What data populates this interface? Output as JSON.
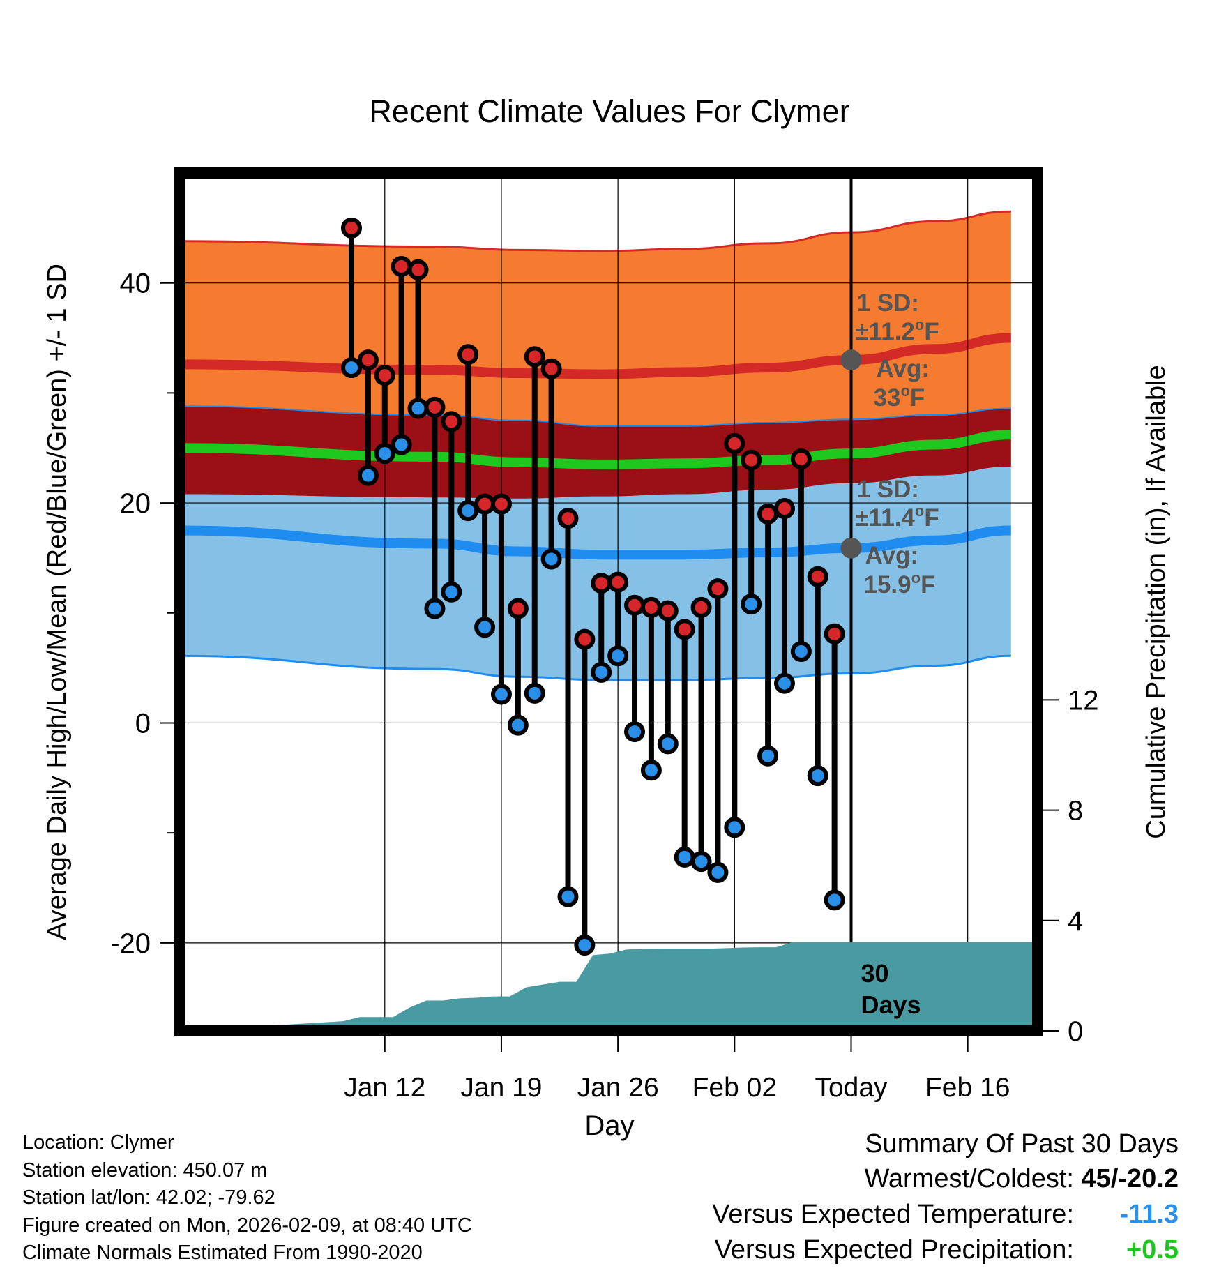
{
  "chart_data": {
    "type": "line",
    "title": "Recent Climate Values For Clymer",
    "xlabel": "Day",
    "ylabel": "Average Daily High/Low/Mean (Red/Blue/Green) +/- 1 SD",
    "ylabel_right": "Cumulative Precipitation (in), If Available",
    "ylim": [
      -28,
      50
    ],
    "ylim_right": [
      0,
      31.1
    ],
    "yticks": [
      -20,
      0,
      20,
      40
    ],
    "yticks_right": [
      0,
      4,
      8,
      12
    ],
    "x_range_days": [
      -40.3,
      11.2
    ],
    "xticks": [
      {
        "day": -28,
        "label": "Jan 12"
      },
      {
        "day": -21,
        "label": "Jan 19"
      },
      {
        "day": -14,
        "label": "Jan 26"
      },
      {
        "day": -7,
        "label": "Feb 02"
      },
      {
        "day": 0,
        "label": "Today"
      },
      {
        "day": 7,
        "label": "Feb 16"
      }
    ],
    "today_marker_label": "30\nDays",
    "normals": {
      "days": [
        -30,
        -25,
        -20,
        -15,
        -10,
        -5,
        0,
        5,
        9.6
      ],
      "high_avg": [
        32.6,
        32.1,
        31.8,
        31.7,
        31.9,
        32.3,
        33.0,
        34.0,
        35.0
      ],
      "high_sd_upper": [
        43.8,
        43.3,
        43.0,
        42.9,
        43.1,
        43.6,
        44.6,
        45.6,
        46.5
      ],
      "low_avg": [
        17.5,
        16.3,
        15.6,
        15.3,
        15.3,
        15.5,
        15.9,
        16.6,
        17.5
      ],
      "low_sd_lower": [
        6.1,
        4.9,
        4.2,
        3.9,
        3.9,
        4.1,
        4.5,
        5.2,
        6.1
      ],
      "mean_avg": [
        25.0,
        24.2,
        23.7,
        23.5,
        23.6,
        23.9,
        24.5,
        25.3,
        26.2
      ],
      "mean_sd_upper": [
        28.8,
        28.0,
        27.5,
        27.0,
        27.0,
        27.3,
        27.6,
        28.0,
        28.6
      ],
      "mean_sd_lower": [
        20.8,
        20.5,
        20.4,
        20.6,
        20.8,
        21.2,
        21.8,
        22.5,
        23.3
      ]
    },
    "series": [
      {
        "name": "High",
        "color": "#d7262a",
        "days": [
          -30,
          -29,
          -28,
          -27,
          -26,
          -25,
          -24,
          -23,
          -22,
          -21,
          -20,
          -19,
          -18,
          -17,
          -16,
          -15,
          -14,
          -13,
          -12,
          -11,
          -10,
          -9,
          -8,
          -7,
          -6,
          -5,
          -4,
          -3,
          -2,
          -1
        ],
        "values": [
          45.0,
          33.0,
          31.6,
          41.5,
          41.2,
          28.7,
          27.4,
          33.5,
          19.9,
          19.9,
          10.4,
          33.3,
          32.2,
          18.6,
          7.6,
          12.7,
          12.8,
          10.7,
          10.5,
          10.2,
          8.5,
          10.5,
          12.2,
          25.4,
          23.9,
          19.0,
          19.5,
          24.0,
          13.3,
          8.1
        ]
      },
      {
        "name": "Low",
        "color": "#2a8fe8",
        "days": [
          -30,
          -29,
          -28,
          -27,
          -26,
          -25,
          -24,
          -23,
          -22,
          -21,
          -20,
          -19,
          -18,
          -17,
          -16,
          -15,
          -14,
          -13,
          -12,
          -11,
          -10,
          -9,
          -8,
          -7,
          -6,
          -5,
          -4,
          -3,
          -2,
          -1
        ],
        "values": [
          32.3,
          22.5,
          24.5,
          25.3,
          28.6,
          10.4,
          11.9,
          19.3,
          8.7,
          2.6,
          -0.2,
          2.7,
          14.9,
          -15.8,
          -20.2,
          4.6,
          6.1,
          -0.8,
          -4.3,
          -1.9,
          -12.2,
          -12.6,
          -13.6,
          -9.5,
          10.8,
          -3.0,
          3.6,
          6.5,
          -4.8,
          -16.1
        ]
      },
      {
        "name": "Cumulative Precipitation",
        "color": "#4a9aa2",
        "days": [
          -30.5,
          -29.5,
          -27.5,
          -26.5,
          -25.5,
          -24.5,
          -23.5,
          -22.5,
          -21.5,
          -20.5,
          -19.5,
          -18.5,
          -17.5,
          -16.5,
          -15.5,
          -14.5,
          -13.5,
          -12.5,
          -11.5,
          -10.5,
          -9.5,
          -8.5,
          -7.5,
          -6.5,
          -5.5,
          -4.5,
          -3.5,
          -2.5,
          -1.5,
          9.6
        ],
        "values": [
          0.35,
          0.5,
          0.5,
          0.85,
          1.1,
          1.1,
          1.18,
          1.2,
          1.25,
          1.25,
          1.58,
          1.68,
          1.78,
          1.78,
          2.75,
          2.8,
          2.95,
          2.97,
          2.98,
          2.98,
          2.98,
          2.98,
          3.0,
          3.02,
          3.03,
          3.03,
          3.22,
          3.22,
          3.22,
          3.22
        ]
      }
    ],
    "annotations": {
      "high": {
        "sd_label": "1 SD:",
        "sd_value": "±11.2",
        "avg_label": "Avg:",
        "avg_value": "33",
        "unit_deg": "o",
        "unit_f": "F"
      },
      "low": {
        "sd_label": "1 SD:",
        "sd_value": "±11.4",
        "avg_label": "Avg:",
        "avg_value": "15.9",
        "unit_deg": "o",
        "unit_f": "F"
      }
    },
    "colors": {
      "high_band": "#f47b30",
      "high_line": "#d42a27",
      "low_band": "#85c0e6",
      "low_line": "#1f8cf0",
      "mean_band": "#9a1016",
      "mean_line": "#1ec81e",
      "precip": "#4a9aa2"
    }
  },
  "footer": {
    "location": "Location: Clymer",
    "elevation": "Station elevation: 450.07 m",
    "latlon": "Station lat/lon: 42.02; -79.62",
    "created": "Figure created on Mon, 2026-02-09, at 08:40 UTC",
    "normals": "Climate Normals Estimated From 1990-2020"
  },
  "summary": {
    "title": "Summary Of Past 30 Days",
    "warmest_label": "Warmest/Coldest:",
    "warmest_value": "45/-20.2",
    "temp_label": "Versus Expected Temperature:",
    "temp_value": "-11.3",
    "temp_color": "#2a8fe8",
    "precip_label": "Versus Expected Precipitation:",
    "precip_value": "+0.5",
    "precip_color": "#1ec81e"
  }
}
